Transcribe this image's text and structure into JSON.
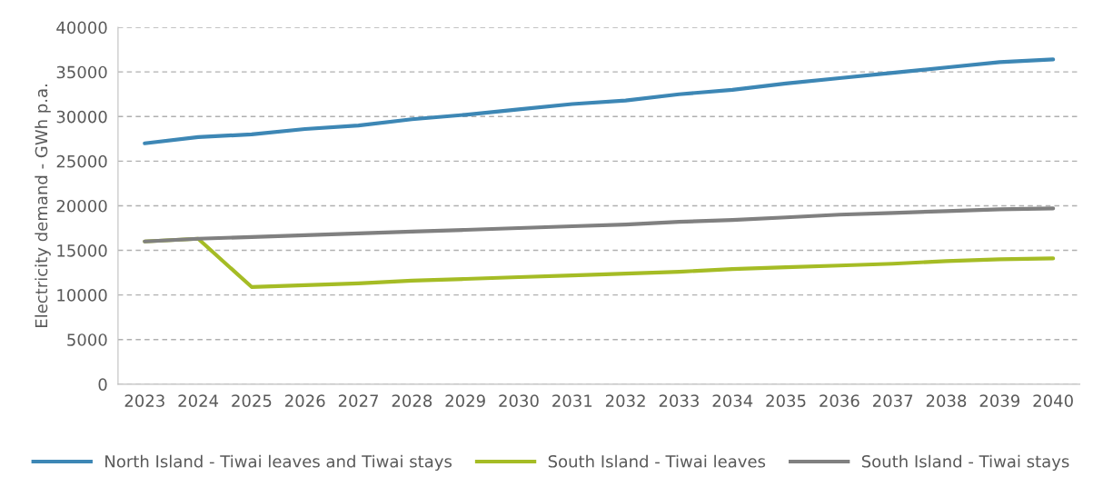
{
  "chart_data": {
    "type": "line",
    "ylabel": "Electricity demand - GWh p.a.",
    "categories": [
      "2023",
      "2024",
      "2025",
      "2026",
      "2027",
      "2028",
      "2029",
      "2030",
      "2031",
      "2032",
      "2033",
      "2034",
      "2035",
      "2036",
      "2037",
      "2038",
      "2039",
      "2040"
    ],
    "series": [
      {
        "name": "North Island - Tiwai leaves and Tiwai stays",
        "color": "#3d87b5",
        "values": [
          27000,
          27700,
          28000,
          28600,
          29000,
          29700,
          30200,
          30800,
          31400,
          31800,
          32500,
          33000,
          33700,
          34300,
          34900,
          35500,
          36100,
          36400
        ]
      },
      {
        "name": "South Island - Tiwai leaves",
        "color": "#a5bc25",
        "values": [
          16000,
          16300,
          10900,
          11100,
          11300,
          11600,
          11800,
          12000,
          12200,
          12400,
          12600,
          12900,
          13100,
          13300,
          13500,
          13800,
          14000,
          14100
        ]
      },
      {
        "name": "South Island - Tiwai stays",
        "color": "#808080",
        "values": [
          16000,
          16300,
          16500,
          16700,
          16900,
          17100,
          17300,
          17500,
          17700,
          17900,
          18200,
          18400,
          18700,
          19000,
          19200,
          19400,
          19600,
          19700
        ]
      }
    ],
    "ylim": [
      0,
      40000
    ],
    "yticks": [
      0,
      5000,
      10000,
      15000,
      20000,
      25000,
      30000,
      35000,
      40000
    ],
    "grid": "y",
    "legend": "bottom",
    "marker": "none",
    "line_style": "solid"
  }
}
